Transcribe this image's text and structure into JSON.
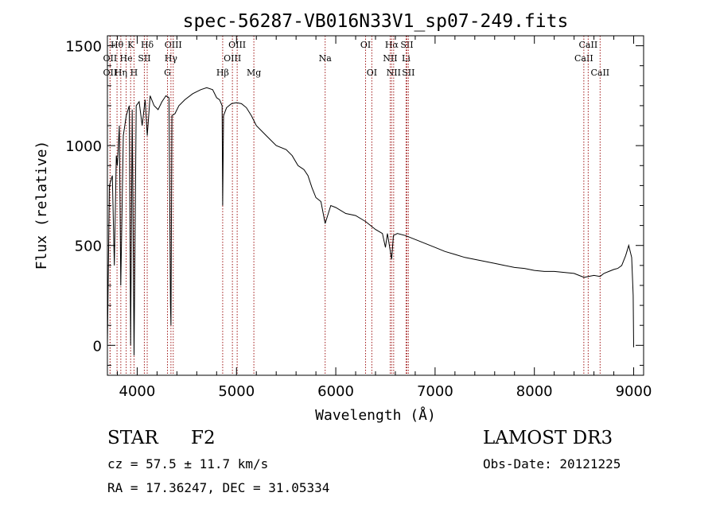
{
  "chart_data": {
    "type": "line",
    "title": "spec-56287-VB016N33V1_sp07-249.fits",
    "xlabel": "Wavelength (Å)",
    "ylabel": "Flux (relative)",
    "xlim": [
      3700,
      9100
    ],
    "ylim": [
      -150,
      1550
    ],
    "x_ticks": [
      4000,
      5000,
      6000,
      7000,
      8000,
      9000
    ],
    "x_tick_labels": [
      "4000",
      "5000",
      "6000",
      "7000",
      "8000",
      "9000"
    ],
    "y_ticks": [
      0,
      500,
      1000,
      1500
    ],
    "y_tick_labels": [
      "0",
      "500",
      "1000",
      "1500"
    ],
    "series": [
      {
        "name": "spectrum",
        "x": [
          3700,
          3720,
          3750,
          3770,
          3790,
          3800,
          3820,
          3835,
          3860,
          3890,
          3920,
          3934,
          3950,
          3968,
          3990,
          4020,
          4050,
          4080,
          4101,
          4130,
          4170,
          4210,
          4250,
          4290,
          4320,
          4335,
          4340,
          4350,
          4380,
          4420,
          4480,
          4560,
          4640,
          4700,
          4760,
          4800,
          4830,
          4855,
          4861,
          4870,
          4900,
          4950,
          5000,
          5050,
          5100,
          5150,
          5200,
          5300,
          5400,
          5500,
          5560,
          5620,
          5680,
          5720,
          5760,
          5800,
          5850,
          5893,
          5950,
          6000,
          6100,
          6200,
          6300,
          6400,
          6470,
          6500,
          6520,
          6563,
          6580,
          6620,
          6700,
          6800,
          6900,
          7000,
          7100,
          7200,
          7300,
          7400,
          7500,
          7600,
          7700,
          7800,
          7900,
          8000,
          8100,
          8200,
          8300,
          8400,
          8450,
          8500,
          8542,
          8600,
          8662,
          8700,
          8750,
          8800,
          8840,
          8880,
          8920,
          8950,
          8980,
          8995,
          9000
        ],
        "y": [
          0,
          800,
          850,
          400,
          950,
          900,
          1100,
          300,
          1050,
          1150,
          1200,
          0,
          1180,
          -50,
          1200,
          1220,
          1100,
          1230,
          1050,
          1250,
          1200,
          1180,
          1220,
          1250,
          1240,
          200,
          100,
          1150,
          1160,
          1200,
          1230,
          1260,
          1280,
          1290,
          1280,
          1240,
          1230,
          1200,
          700,
          1150,
          1190,
          1210,
          1215,
          1210,
          1190,
          1150,
          1100,
          1050,
          1000,
          980,
          950,
          900,
          880,
          850,
          790,
          740,
          720,
          610,
          700,
          690,
          660,
          650,
          620,
          580,
          560,
          490,
          560,
          430,
          550,
          560,
          550,
          530,
          510,
          490,
          470,
          455,
          440,
          430,
          420,
          410,
          400,
          390,
          385,
          375,
          370,
          370,
          365,
          360,
          350,
          340,
          345,
          350,
          345,
          360,
          370,
          380,
          385,
          400,
          450,
          500,
          440,
          250,
          -10
        ]
      }
    ],
    "line_markers": [
      {
        "name": "Hθ",
        "x": 3797,
        "row": 1
      },
      {
        "name": "OII",
        "x": 3727,
        "row": 2
      },
      {
        "name": "OII",
        "x": 3727,
        "row": 3
      },
      {
        "name": "He",
        "x": 3889,
        "row": 2
      },
      {
        "name": "Hη",
        "x": 3835,
        "row": 3
      },
      {
        "name": "K",
        "x": 3934,
        "row": 1
      },
      {
        "name": "H",
        "x": 3968,
        "row": 3
      },
      {
        "name": "SII",
        "x": 4072,
        "row": 2
      },
      {
        "name": "Hδ",
        "x": 4101,
        "row": 1
      },
      {
        "name": "OIII",
        "x": 4363,
        "row": 1
      },
      {
        "name": "Hγ",
        "x": 4340,
        "row": 2
      },
      {
        "name": "G",
        "x": 4305,
        "row": 3
      },
      {
        "name": "Hβ",
        "x": 4861,
        "row": 3
      },
      {
        "name": "OIII",
        "x": 4959,
        "row": 2
      },
      {
        "name": "OIII",
        "x": 5007,
        "row": 1
      },
      {
        "name": "Mg",
        "x": 5175,
        "row": 3
      },
      {
        "name": "Na",
        "x": 5893,
        "row": 2
      },
      {
        "name": "OI",
        "x": 6300,
        "row": 1
      },
      {
        "name": "OI",
        "x": 6363,
        "row": 3
      },
      {
        "name": "Hα",
        "x": 6563,
        "row": 1
      },
      {
        "name": "NII",
        "x": 6548,
        "row": 2
      },
      {
        "name": "NII",
        "x": 6583,
        "row": 3
      },
      {
        "name": "SII",
        "x": 6716,
        "row": 1
      },
      {
        "name": "Li",
        "x": 6708,
        "row": 2
      },
      {
        "name": "SII",
        "x": 6731,
        "row": 3
      },
      {
        "name": "CaII",
        "x": 8498,
        "row": 2
      },
      {
        "name": "CaII",
        "x": 8542,
        "row": 1
      },
      {
        "name": "CaII",
        "x": 8662,
        "row": 3
      }
    ]
  },
  "info": {
    "class_label": "STAR",
    "subclass": "F2",
    "survey": "LAMOST DR3",
    "cz": "cz = 57.5 ± 11.7 km/s",
    "obs_date": "Obs-Date: 20121225",
    "coords": "RA =  17.36247, DEC =  31.05334"
  },
  "colors": {
    "axis": "#000000",
    "spectrum": "#000000",
    "marker": "#a01818"
  }
}
